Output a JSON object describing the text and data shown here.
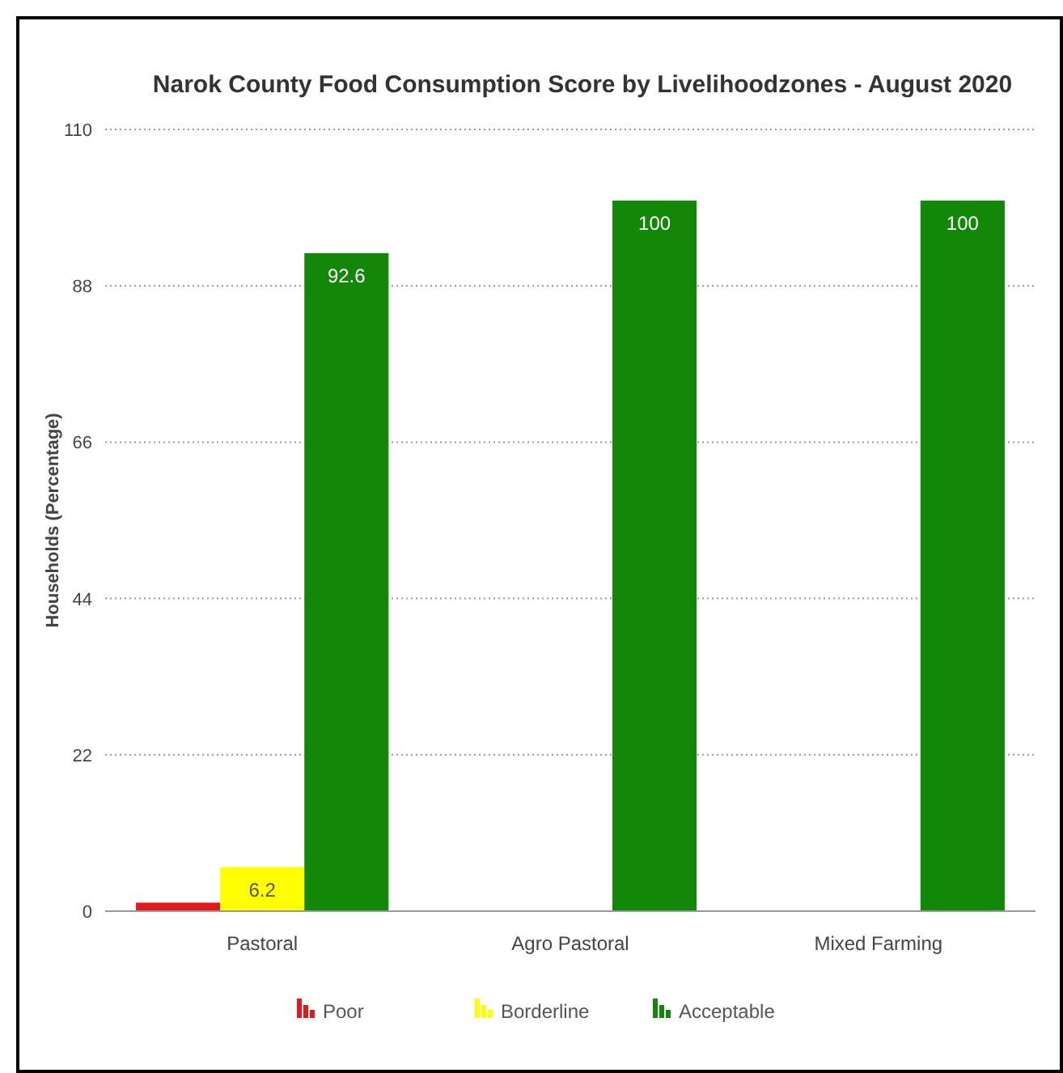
{
  "chart_data": {
    "type": "bar",
    "title": "Narok County Food Consumption Score by Livelihoodzones - August 2020",
    "ylabel": "Households (Percentage)",
    "categories": [
      "Pastoral",
      "Agro Pastoral",
      "Mixed Farming"
    ],
    "series": [
      {
        "name": "Poor",
        "color": "#e31a1c",
        "values": [
          1.2,
          0,
          0
        ],
        "value_labels": [
          null,
          null,
          null
        ]
      },
      {
        "name": "Borderline",
        "color": "#ffff00",
        "values": [
          6.2,
          0,
          0
        ],
        "value_labels": [
          "6.2",
          null,
          null
        ]
      },
      {
        "name": "Acceptable",
        "color": "#138808",
        "values": [
          92.6,
          100,
          100
        ],
        "value_labels": [
          "92.6",
          "100",
          "100"
        ]
      }
    ],
    "ylim": [
      0,
      110
    ],
    "yticks": [
      0,
      22,
      44,
      66,
      88,
      110
    ],
    "grid": "y",
    "legend": "bottom"
  }
}
